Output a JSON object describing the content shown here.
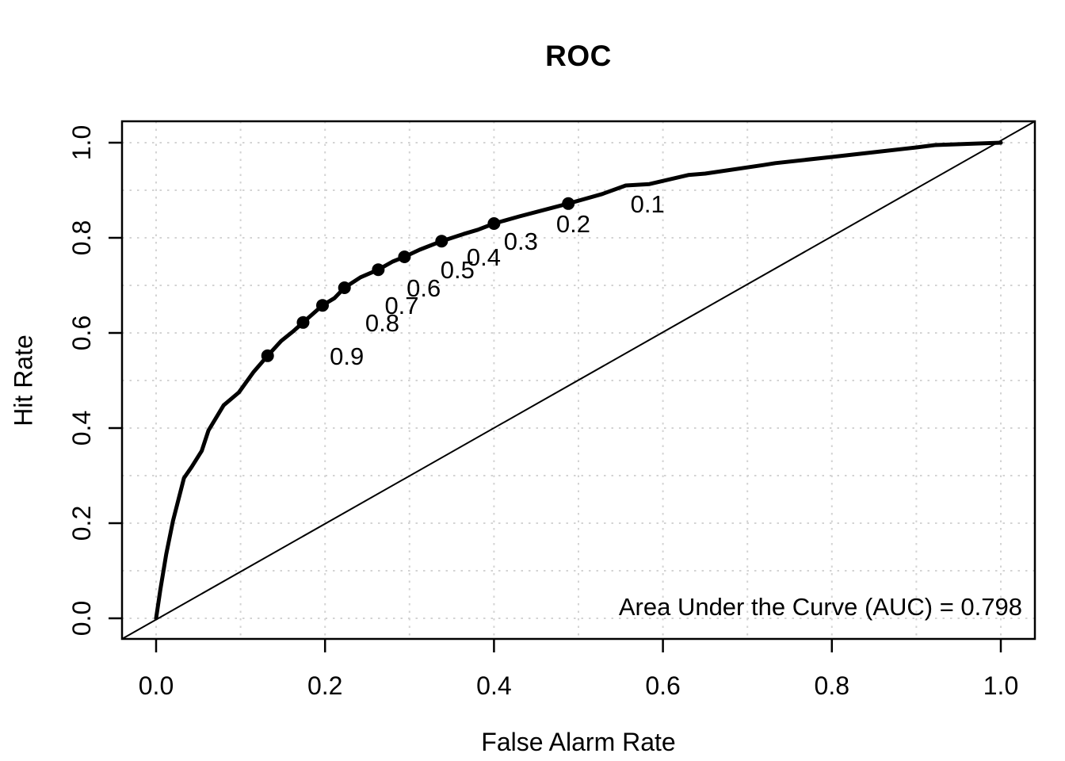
{
  "chart_data": {
    "type": "line",
    "title": "ROC",
    "xlabel": "False Alarm Rate",
    "ylabel": "Hit Rate",
    "xlim": [
      0,
      1
    ],
    "ylim": [
      0,
      1
    ],
    "x_ticks": [
      0,
      0.2,
      0.4,
      0.6,
      0.8,
      1.0
    ],
    "x_tick_labels": [
      "0.0",
      "0.2",
      "0.4",
      "0.6",
      "0.8",
      "1.0"
    ],
    "y_ticks": [
      0,
      0.2,
      0.4,
      0.6,
      0.8,
      1.0
    ],
    "y_tick_labels": [
      "0.0",
      "0.2",
      "0.4",
      "0.6",
      "0.8",
      "1.0"
    ],
    "grid": {
      "visible": true,
      "step": 0.1,
      "style": "dotted",
      "color": "#d3d3d3"
    },
    "legend": "none",
    "annotation": "Area Under the Curve (AUC) = 0.798",
    "auc": 0.798,
    "chance_line": {
      "from": [
        0,
        0
      ],
      "to": [
        1,
        1
      ],
      "style": "solid",
      "width": 2
    },
    "series": [
      {
        "name": "ROC curve",
        "color": "#000000",
        "line_width": 5,
        "points": [
          [
            0,
            0
          ],
          [
            0.005,
            0.06
          ],
          [
            0.012,
            0.135
          ],
          [
            0.02,
            0.205
          ],
          [
            0.033,
            0.295
          ],
          [
            0.042,
            0.318
          ],
          [
            0.054,
            0.352
          ],
          [
            0.062,
            0.395
          ],
          [
            0.08,
            0.448
          ],
          [
            0.098,
            0.475
          ],
          [
            0.115,
            0.517
          ],
          [
            0.132,
            0.552
          ],
          [
            0.148,
            0.583
          ],
          [
            0.162,
            0.603
          ],
          [
            0.174,
            0.622
          ],
          [
            0.197,
            0.658
          ],
          [
            0.211,
            0.673
          ],
          [
            0.223,
            0.695
          ],
          [
            0.242,
            0.717
          ],
          [
            0.263,
            0.733
          ],
          [
            0.28,
            0.75
          ],
          [
            0.294,
            0.76
          ],
          [
            0.312,
            0.775
          ],
          [
            0.338,
            0.793
          ],
          [
            0.364,
            0.808
          ],
          [
            0.381,
            0.817
          ],
          [
            0.4,
            0.83
          ],
          [
            0.43,
            0.845
          ],
          [
            0.458,
            0.858
          ],
          [
            0.488,
            0.872
          ],
          [
            0.528,
            0.892
          ],
          [
            0.556,
            0.91
          ],
          [
            0.584,
            0.913
          ],
          [
            0.63,
            0.932
          ],
          [
            0.65,
            0.935
          ],
          [
            0.719,
            0.953
          ],
          [
            0.733,
            0.957
          ],
          [
            0.8,
            0.97
          ],
          [
            0.85,
            0.98
          ],
          [
            0.9,
            0.99
          ],
          [
            0.922,
            0.995
          ],
          [
            1,
            1
          ]
        ]
      }
    ],
    "threshold_points": [
      {
        "threshold": "0.1",
        "x": 0.488,
        "y": 0.872
      },
      {
        "threshold": "0.2",
        "x": 0.4,
        "y": 0.83
      },
      {
        "threshold": "0.3",
        "x": 0.338,
        "y": 0.793
      },
      {
        "threshold": "0.4",
        "x": 0.294,
        "y": 0.76
      },
      {
        "threshold": "0.5",
        "x": 0.263,
        "y": 0.733
      },
      {
        "threshold": "0.6",
        "x": 0.223,
        "y": 0.695
      },
      {
        "threshold": "0.7",
        "x": 0.197,
        "y": 0.658
      },
      {
        "threshold": "0.8",
        "x": 0.174,
        "y": 0.622
      },
      {
        "threshold": "0.9",
        "x": 0.132,
        "y": 0.552
      }
    ],
    "colors": {
      "curve": "#000000",
      "text": "#000000",
      "grid": "#d3d3d3",
      "background": "#ffffff"
    }
  }
}
